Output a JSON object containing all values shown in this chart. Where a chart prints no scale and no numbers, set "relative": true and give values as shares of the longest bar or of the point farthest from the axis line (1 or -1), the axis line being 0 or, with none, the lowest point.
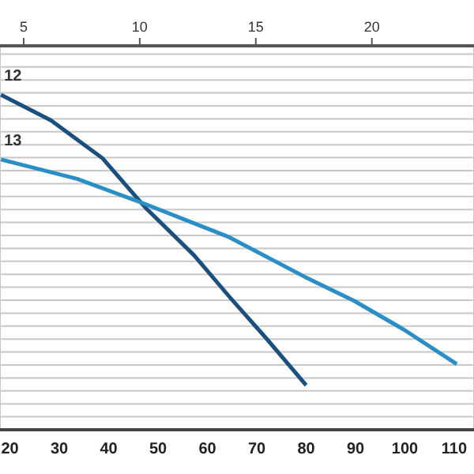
{
  "chart_data": {
    "type": "line",
    "relative": true,
    "grid": true,
    "marker": "none",
    "line_style": "solid",
    "xlim": [
      18,
      114
    ],
    "xticks": [
      20,
      30,
      40,
      50,
      60,
      70,
      80,
      90,
      100,
      110
    ],
    "x2lim": [
      3.98,
      24.4
    ],
    "x2ticks": [
      5,
      10,
      15,
      20
    ],
    "series": [
      {
        "name": "12",
        "color": "#1b4f7e",
        "x": [
          18.2,
          28.3,
          38.8,
          47.4,
          57.3,
          64.4,
          72.1,
          80
        ],
        "values": [
          1.0,
          0.924,
          0.81,
          0.664,
          0.521,
          0.398,
          0.27,
          0.133
        ]
      },
      {
        "name": "13",
        "color": "#2b8fc6",
        "x": [
          18.2,
          33.6,
          47.4,
          64.4,
          79.8,
          89.7,
          99.8,
          110.5
        ],
        "values": [
          0.807,
          0.749,
          0.674,
          0.575,
          0.456,
          0.385,
          0.299,
          0.196
        ]
      }
    ]
  }
}
